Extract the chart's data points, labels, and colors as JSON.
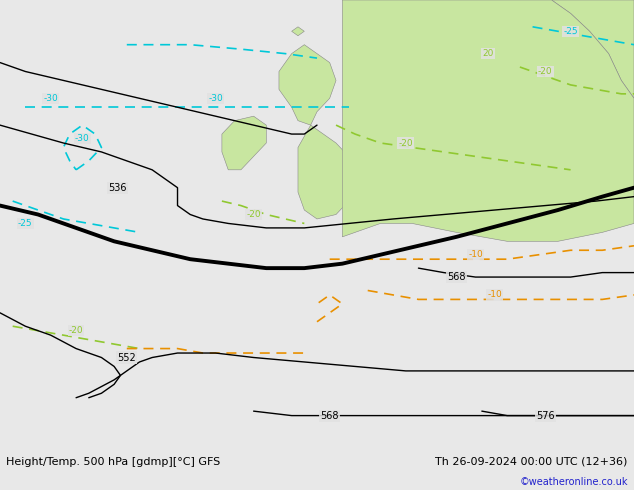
{
  "title_left": "Height/Temp. 500 hPa [gdmp][°C] GFS",
  "title_right": "Th 26-09-2024 00:00 UTC (12+36)",
  "credit": "©weatheronline.co.uk",
  "bg_color": "#e2e2e2",
  "land_color": "#c8e6a0",
  "coast_color": "#888888",
  "bottom_bg": "#e8e8e8"
}
